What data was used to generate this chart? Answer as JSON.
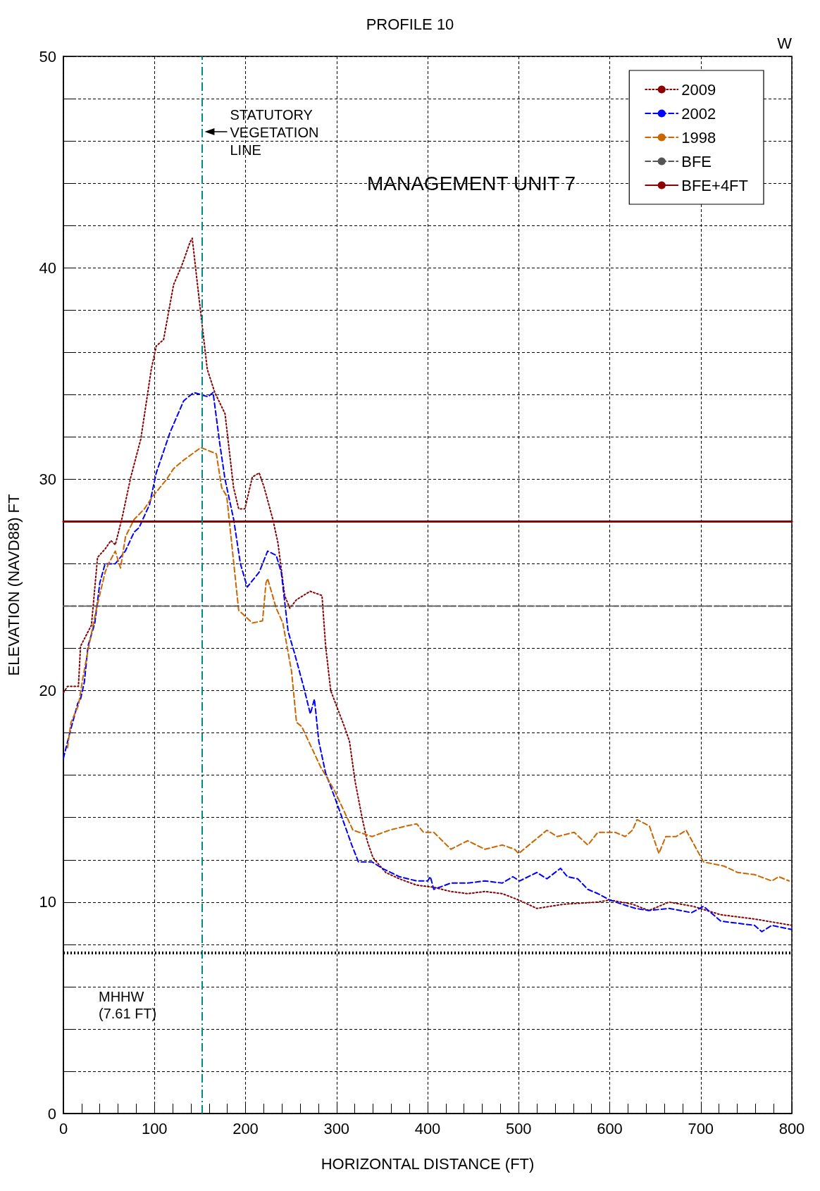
{
  "chart_data": {
    "type": "line",
    "title": "PROFILE 10",
    "xlabel": "HORIZONTAL DISTANCE (FT)",
    "ylabel": "ELEVATION (NAVD88) FT",
    "annotations": [
      "W",
      "MANAGEMENT UNIT 7"
    ],
    "xlim": [
      0,
      800
    ],
    "xticks": [
      0,
      {
        "value": 20,
        "label": null
      },
      {
        "value": 40,
        "label": null
      },
      {
        "value": 60,
        "label": null
      },
      {
        "value": 80,
        "label": null
      },
      100,
      {
        "value": 120,
        "label": null
      },
      {
        "value": 140,
        "label": null
      },
      {
        "value": 160,
        "label": null
      },
      {
        "value": 180,
        "label": null
      },
      200,
      {
        "value": 220,
        "label": null
      },
      {
        "value": 240,
        "label": null
      },
      {
        "value": 260,
        "label": null
      },
      {
        "value": 280,
        "label": null
      },
      300,
      {
        "value": 320,
        "label": null
      },
      {
        "value": 340,
        "label": null
      },
      {
        "value": 360,
        "label": null
      },
      {
        "value": 380,
        "label": null
      },
      400,
      {
        "value": 420,
        "label": null
      },
      {
        "value": 440,
        "label": null
      },
      {
        "value": 460,
        "label": null
      },
      {
        "value": 480,
        "label": null
      },
      500,
      {
        "value": 520,
        "label": null
      },
      {
        "value": 540,
        "label": null
      },
      {
        "value": 560,
        "label": null
      },
      {
        "value": 580,
        "label": null
      },
      600,
      {
        "value": 620,
        "label": null
      },
      {
        "value": 640,
        "label": null
      },
      {
        "value": 660,
        "label": null
      },
      {
        "value": 680,
        "label": null
      },
      700,
      {
        "value": 720,
        "label": null
      },
      {
        "value": 740,
        "label": null
      },
      {
        "value": 760,
        "label": null
      },
      {
        "value": 780,
        "label": null
      },
      800
    ],
    "ylim": [
      0,
      50
    ],
    "yticks": [
      0,
      {
        "value": 2,
        "label": null
      },
      {
        "value": 4,
        "label": null
      },
      {
        "value": 6,
        "label": null
      },
      {
        "value": 8,
        "label": null
      },
      10,
      {
        "value": 12,
        "label": null
      },
      {
        "value": 14,
        "label": null
      },
      {
        "value": 16,
        "label": null
      },
      {
        "value": 18,
        "label": null
      },
      20,
      {
        "value": 22,
        "label": null
      },
      {
        "value": 24,
        "label": null
      },
      {
        "value": 26,
        "label": null
      },
      {
        "value": 28,
        "label": null
      },
      30,
      {
        "value": 32,
        "label": null
      },
      {
        "value": 34,
        "label": null
      },
      {
        "value": 36,
        "label": null
      },
      {
        "value": 38,
        "label": null
      },
      40,
      {
        "value": 42,
        "label": null
      },
      {
        "value": 44,
        "label": null
      },
      {
        "value": 46,
        "label": null
      },
      {
        "value": 48,
        "label": null
      },
      50
    ],
    "grid": true,
    "legend": "top right",
    "marker": "none",
    "ref_lines": [
      {
        "axis": "y",
        "value": 7.61,
        "label": "MHHW\n(7.61 FT)",
        "color": "#000000",
        "line_style": "dotted"
      },
      {
        "axis": "x",
        "value": 152,
        "label": "STATUTORY\nVEGETATION\nLINE",
        "color": "#008b8b",
        "line_style": "dashed"
      }
    ],
    "series": [
      {
        "name": "2009",
        "color": "#8b0000",
        "line_style": "dotted",
        "x": [
          0,
          4.5,
          16.5,
          18.8,
          30.8,
          37.5,
          45.8,
          52.2,
          57,
          64.6,
          74,
          85,
          96.5,
          102,
          110,
          121,
          130,
          139,
          141.5,
          147,
          158,
          166.3,
          177.5,
          186.9,
          192.5,
          199.3,
          207.5,
          215,
          220.6,
          230,
          235.6,
          243,
          248.7,
          256,
          271,
          284,
          288,
          293.6,
          308.6,
          314.2,
          320.4,
          328,
          333.6,
          340,
          354,
          369,
          388,
          406.8,
          425.5,
          444,
          463,
          482,
          500,
          520,
          550,
          587,
          600,
          625,
          643,
          665,
          691.7,
          722,
          759,
          800
        ],
        "values": [
          19.9,
          20.2,
          20.2,
          22.1,
          23.1,
          26.3,
          26.7,
          27.1,
          26.9,
          28.2,
          30.1,
          31.9,
          35.2,
          36.3,
          36.6,
          39.2,
          40.1,
          41.2,
          41.4,
          39.3,
          35.2,
          34.1,
          33.1,
          29.6,
          28.6,
          28.6,
          30.1,
          30.3,
          29.6,
          28.1,
          27.0,
          24.5,
          23.9,
          24.3,
          24.7,
          24.5,
          22.1,
          20.0,
          18.3,
          17.6,
          15.7,
          14.0,
          12.9,
          12.1,
          11.4,
          11.1,
          10.8,
          10.7,
          10.5,
          10.4,
          10.5,
          10.4,
          10.1,
          9.7,
          9.9,
          10.0,
          10.1,
          9.9,
          9.6,
          10.0,
          9.8,
          9.4,
          9.2,
          8.9
        ]
      },
      {
        "name": "2002",
        "color": "#0000ff",
        "line_style": "dashed",
        "x": [
          0,
          6.4,
          15.8,
          18.8,
          23,
          27,
          34.5,
          40,
          45.8,
          57,
          68,
          77.7,
          83,
          94.6,
          102,
          117,
          132,
          143,
          158.8,
          164.4,
          172,
          177.5,
          187,
          194.4,
          201.9,
          207.5,
          215,
          224.3,
          233.7,
          239.3,
          246.8,
          254.3,
          263.7,
          271.2,
          275.7,
          280.5,
          288,
          301,
          316.7,
          324,
          339,
          350,
          369,
          388,
          400,
          403,
          406.8,
          425.5,
          444,
          463,
          482,
          493.6,
          501,
          520,
          531,
          546,
          553.5,
          564.8,
          576,
          587,
          600,
          613.5,
          628.5,
          643,
          665,
          690,
          703,
          722,
          759,
          767,
          778,
          800
        ],
        "values": [
          16.8,
          17.9,
          19.4,
          19.6,
          20.4,
          22.1,
          23.2,
          25.1,
          26.0,
          26.0,
          26.6,
          27.5,
          27.7,
          28.8,
          30.3,
          32.2,
          33.7,
          34.1,
          33.9,
          34.1,
          31.6,
          30.0,
          28.1,
          26.0,
          24.9,
          25.2,
          25.6,
          26.6,
          26.4,
          25.6,
          22.8,
          21.7,
          20.2,
          18.9,
          19.6,
          17.6,
          16.1,
          14.6,
          12.7,
          11.9,
          11.9,
          11.6,
          11.2,
          11.0,
          11.0,
          11.2,
          10.6,
          10.9,
          10.9,
          11.0,
          10.9,
          11.2,
          11.0,
          11.4,
          11.1,
          11.6,
          11.2,
          11.1,
          10.6,
          10.4,
          10.1,
          9.9,
          9.7,
          9.6,
          9.7,
          9.5,
          9.8,
          9.1,
          8.9,
          8.6,
          8.9,
          8.7
        ]
      },
      {
        "name": "1998",
        "color": "#cc6600",
        "line_style": "dashed",
        "x": [
          4.5,
          8.3,
          16.5,
          21.4,
          27,
          36.4,
          45.8,
          49.5,
          57,
          62.7,
          68.3,
          77.7,
          89,
          98.3,
          113.4,
          121,
          132,
          151,
          168,
          173.8,
          179.4,
          192.5,
          207.5,
          218.7,
          222.5,
          224.3,
          233.7,
          241,
          250.6,
          256,
          261.8,
          282.4,
          297.4,
          318,
          339,
          358,
          376.7,
          388,
          395.5,
          406.8,
          425.5,
          444,
          463,
          482,
          495.5,
          500,
          531,
          542.3,
          561,
          576,
          587,
          606,
          617,
          625,
          630,
          643.6,
          654,
          661.6,
          673,
          684,
          703,
          725.6,
          740.6,
          759,
          778,
          785.7,
          797
        ],
        "values": [
          17.3,
          18.5,
          19.3,
          20.6,
          21.9,
          23.9,
          25.6,
          26.0,
          26.6,
          25.8,
          27.3,
          28.1,
          28.6,
          29.2,
          30.0,
          30.5,
          30.9,
          31.5,
          31.2,
          29.6,
          29.2,
          23.8,
          23.2,
          23.3,
          25.1,
          25.3,
          23.9,
          23.2,
          20.9,
          18.5,
          18.3,
          16.4,
          15.3,
          13.4,
          13.1,
          13.4,
          13.6,
          13.7,
          13.3,
          13.3,
          12.5,
          12.9,
          12.5,
          12.7,
          12.5,
          12.3,
          13.4,
          13.1,
          13.3,
          12.7,
          13.3,
          13.3,
          13.1,
          13.4,
          13.9,
          13.6,
          12.3,
          13.1,
          13.1,
          13.4,
          11.9,
          11.7,
          11.4,
          11.3,
          11.0,
          11.2,
          11.0
        ]
      },
      {
        "name": "BFE",
        "color": "#555555",
        "line_style": "dashed",
        "x": [
          0,
          800
        ],
        "values": [
          24,
          24
        ]
      },
      {
        "name": "BFE+4FT",
        "color": "#8b0000",
        "line_style": "solid",
        "x": [
          0,
          800
        ],
        "values": [
          28,
          28
        ]
      }
    ]
  }
}
